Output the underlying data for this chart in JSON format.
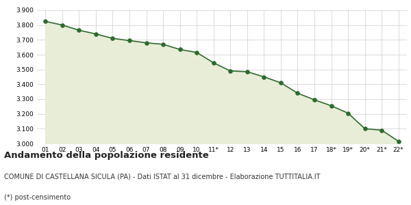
{
  "x_labels": [
    "01",
    "02",
    "03",
    "04",
    "05",
    "06",
    "07",
    "08",
    "09",
    "10",
    "11*",
    "12",
    "13",
    "14",
    "15",
    "16",
    "17",
    "18*",
    "19*",
    "20*",
    "21*",
    "22*"
  ],
  "y_values": [
    3825,
    3800,
    3765,
    3740,
    3710,
    3695,
    3680,
    3670,
    3635,
    3615,
    3545,
    3490,
    3485,
    3450,
    3410,
    3340,
    3295,
    3255,
    3205,
    3100,
    3090,
    3015
  ],
  "line_color": "#2d6a2d",
  "fill_color": "#e8edd8",
  "marker_color": "#2d6a2d",
  "bg_color": "#ffffff",
  "grid_color": "#cccccc",
  "ylim": [
    3000,
    3900
  ],
  "yticks": [
    3000,
    3100,
    3200,
    3300,
    3400,
    3500,
    3600,
    3700,
    3800,
    3900
  ],
  "title": "Andamento della popolazione residente",
  "subtitle": "COMUNE DI CASTELLANA SICULA (PA) - Dati ISTAT al 31 dicembre - Elaborazione TUTTITALIA.IT",
  "footnote": "(*) post-censimento",
  "title_fontsize": 9.5,
  "subtitle_fontsize": 7,
  "footnote_fontsize": 7,
  "tick_fontsize": 6.5
}
